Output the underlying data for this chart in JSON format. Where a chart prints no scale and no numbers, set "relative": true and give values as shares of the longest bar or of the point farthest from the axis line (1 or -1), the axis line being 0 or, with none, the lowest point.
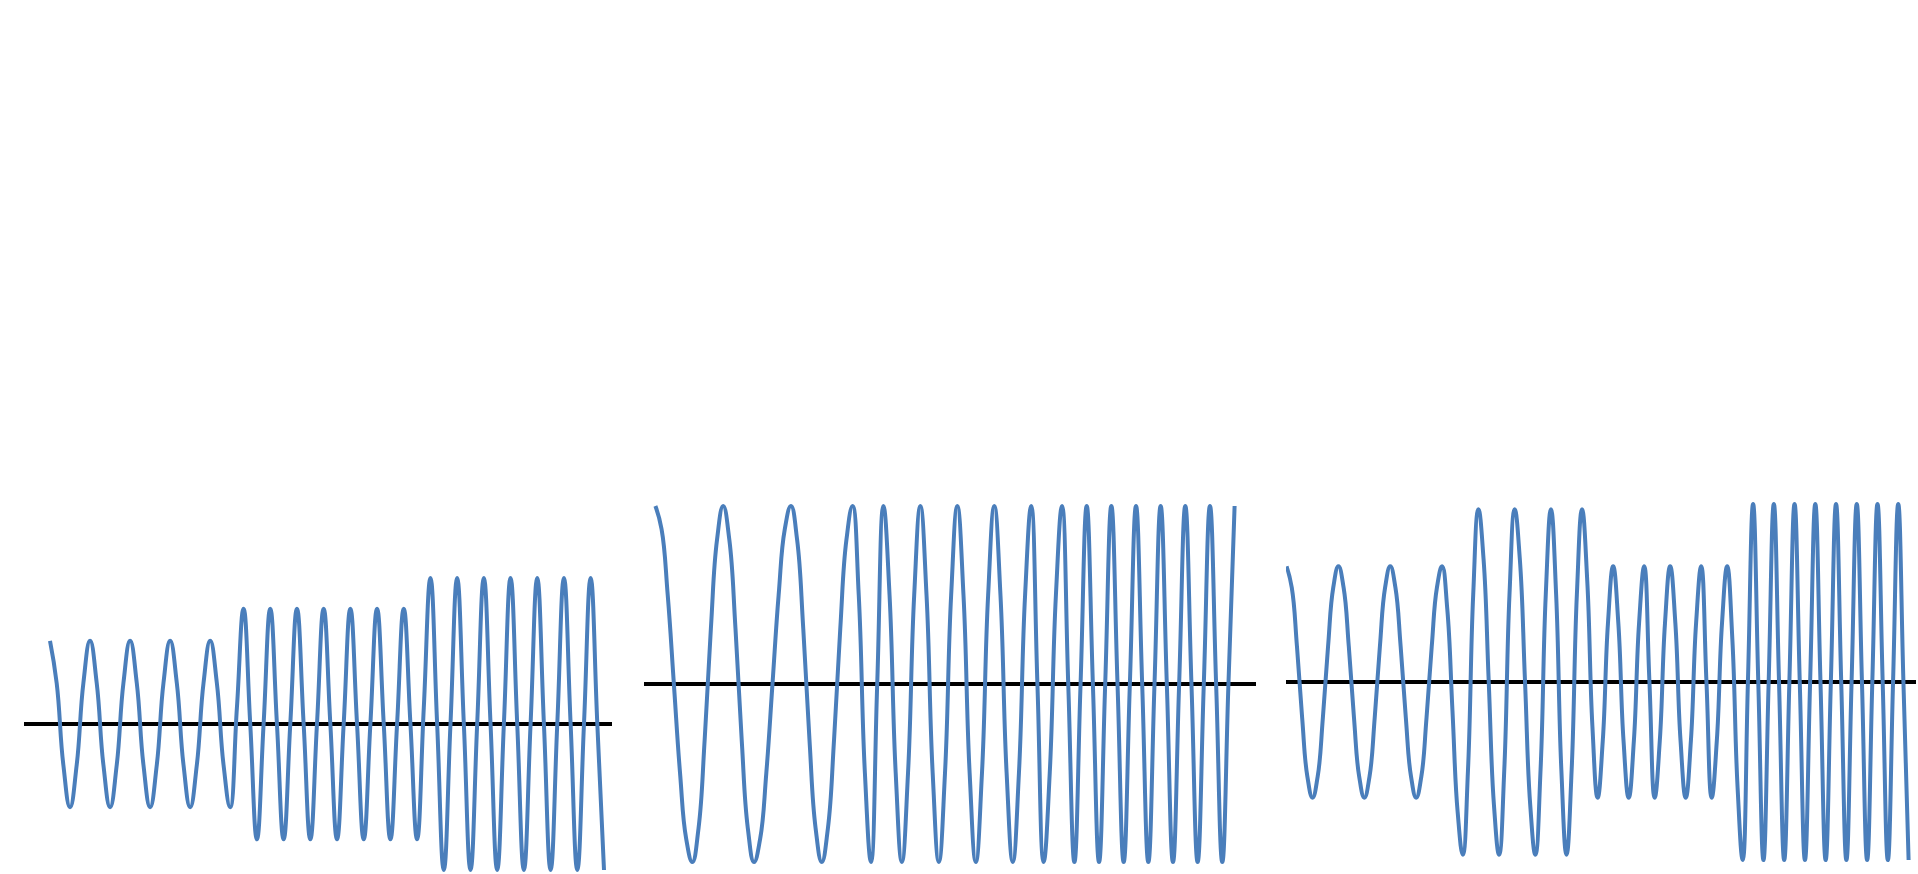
{
  "chart_data": [
    {
      "type": "line",
      "relative": true,
      "categories": [
        null,
        null,
        null,
        null,
        null,
        null,
        null,
        null,
        null,
        null,
        null,
        null,
        null,
        null,
        null,
        null,
        null,
        null,
        null,
        null,
        null,
        null,
        null,
        null,
        null,
        null,
        null,
        null,
        null,
        null,
        null,
        null,
        null,
        null,
        null,
        null,
        null,
        null,
        null,
        null,
        null,
        null,
        null,
        null,
        null,
        null,
        null,
        null,
        null,
        null,
        null,
        null,
        null,
        null,
        null,
        null,
        null,
        null,
        null,
        null,
        null,
        null,
        null,
        null,
        null,
        null,
        null,
        null,
        null,
        null,
        null,
        null,
        null,
        null,
        null,
        null,
        null,
        null,
        null,
        null,
        null,
        null,
        null,
        null
      ],
      "series": [
        {
          "color": "#4a7ebb",
          "values": [
            0.57,
            0.28,
            -0.28,
            -0.57,
            -0.28,
            0.28,
            0.57,
            0.28,
            -0.28,
            -0.57,
            -0.28,
            0.28,
            0.57,
            0.28,
            -0.28,
            -0.57,
            -0.28,
            0.28,
            0.57,
            0.28,
            -0.28,
            -0.57,
            -0.28,
            0.28,
            0.57,
            0.28,
            -0.28,
            -0.57,
            0.11,
            0.79,
            0,
            -0.79,
            0,
            0.79,
            0,
            -0.79,
            0,
            0.79,
            0,
            -0.79,
            0,
            0.79,
            0,
            -0.79,
            0,
            0.79,
            0,
            -0.79,
            0,
            0.79,
            0,
            -0.79,
            0,
            0.79,
            0,
            -0.79,
            0.11,
            1,
            0,
            -1,
            0,
            1,
            0,
            -1,
            0,
            1,
            0,
            -1,
            0,
            1,
            0,
            -1,
            0,
            1,
            0,
            -1,
            0,
            1,
            0,
            -1,
            0,
            1,
            0,
            -1
          ]
        }
      ]
    },
    {
      "type": "line",
      "relative": true,
      "categories": [
        null,
        null,
        null,
        null,
        null,
        null,
        null,
        null,
        null,
        null,
        null,
        null,
        null,
        null,
        null,
        null,
        null,
        null,
        null,
        null,
        null,
        null,
        null,
        null,
        null,
        null,
        null,
        null,
        null,
        null,
        null,
        null,
        null,
        null,
        null,
        null,
        null,
        null,
        null,
        null,
        null,
        null,
        null,
        null,
        null,
        null,
        null,
        null,
        null,
        null,
        null,
        null,
        null,
        null,
        null,
        null,
        null,
        null,
        null,
        null,
        null,
        null,
        null,
        null,
        null,
        null,
        null,
        null,
        null,
        null,
        null,
        null,
        null,
        null,
        null,
        null,
        null,
        null,
        null,
        null,
        null,
        null,
        null,
        null,
        null,
        null,
        null,
        null,
        null,
        null,
        null,
        null,
        null,
        null,
        null
      ],
      "series": [
        {
          "color": "#4a7ebb",
          "values": [
            1,
            0.87,
            0.5,
            0,
            -0.5,
            -0.87,
            -1,
            -0.81,
            -0.31,
            0.31,
            0.81,
            1,
            0.81,
            0.31,
            -0.31,
            -0.81,
            -1,
            -0.87,
            -0.5,
            0,
            0.5,
            0.87,
            1,
            0.81,
            0.31,
            -0.31,
            -0.81,
            -1,
            -0.81,
            -0.31,
            0.31,
            0.81,
            1,
            0.5,
            -0.5,
            -1,
            0,
            1,
            0.5,
            -0.5,
            -1,
            -0.5,
            0.5,
            1,
            0.5,
            -0.5,
            -1,
            -0.5,
            0.5,
            1,
            0.5,
            -0.5,
            -1,
            -0.5,
            0.5,
            1,
            0.5,
            -0.5,
            -1,
            -0.5,
            0.5,
            1,
            0,
            -1,
            -0.5,
            0.5,
            1,
            0,
            -1,
            0,
            1,
            0,
            -1,
            0,
            1,
            0,
            -1,
            0,
            1,
            0,
            -1,
            0,
            1,
            0,
            -1,
            0,
            1,
            0,
            -1,
            0,
            1,
            0,
            -1,
            0,
            1
          ]
        }
      ]
    },
    {
      "type": "line",
      "relative": true,
      "categories": [
        null,
        null,
        null,
        null,
        null,
        null,
        null,
        null,
        null,
        null,
        null,
        null,
        null,
        null,
        null,
        null,
        null,
        null,
        null,
        null,
        null,
        null,
        null,
        null,
        null,
        null,
        null,
        null,
        null,
        null,
        null,
        null,
        null,
        null,
        null,
        null,
        null,
        null,
        null,
        null,
        null,
        null,
        null,
        null,
        null,
        null,
        null,
        null,
        null,
        null,
        null,
        null,
        null,
        null,
        null,
        null,
        null,
        null,
        null,
        null,
        null,
        null,
        null,
        null,
        null,
        null,
        null,
        null,
        null,
        null,
        null,
        null,
        null,
        null,
        null,
        null,
        null,
        null,
        null,
        null,
        null,
        null,
        null,
        null,
        null,
        null,
        null,
        null,
        null,
        null,
        null,
        null,
        null,
        null,
        null,
        null,
        null,
        null,
        null,
        null,
        null,
        null,
        null,
        null,
        null,
        null,
        null,
        null,
        null,
        null,
        null,
        null,
        null,
        null,
        null,
        null,
        null,
        null,
        null,
        null,
        null
      ],
      "series": [
        {
          "color": "#4a7ebb",
          "values": [
            0.65,
            0.53,
            0.2,
            -0.2,
            -0.53,
            -0.65,
            -0.53,
            -0.2,
            0.2,
            0.53,
            0.65,
            0.53,
            0.2,
            -0.2,
            -0.53,
            -0.65,
            -0.53,
            -0.2,
            0.2,
            0.53,
            0.65,
            0.53,
            0.2,
            -0.2,
            -0.53,
            -0.65,
            -0.53,
            -0.2,
            0.2,
            0.53,
            0.65,
            0.41,
            -0.16,
            -0.73,
            -0.97,
            -0.49,
            0.49,
            0.97,
            0.69,
            0,
            -0.69,
            -0.97,
            -0.49,
            0.49,
            0.97,
            0.69,
            0,
            -0.69,
            -0.97,
            -0.49,
            0.49,
            0.97,
            0.49,
            -0.49,
            -0.97,
            -0.49,
            0.49,
            0.97,
            0.57,
            -0.25,
            -0.65,
            -0.33,
            0.33,
            0.65,
            0.33,
            -0.33,
            -0.65,
            -0.33,
            0.33,
            0.65,
            0,
            -0.65,
            -0.33,
            0.33,
            0.65,
            0.33,
            -0.33,
            -0.65,
            -0.33,
            0.33,
            0.65,
            0,
            -0.65,
            -0.33,
            0.33,
            0.65,
            0.24,
            -0.59,
            -1,
            0,
            1,
            0,
            -1,
            0,
            1,
            0,
            -1,
            0,
            1,
            0,
            -1,
            0,
            1,
            0,
            -1,
            0,
            1,
            0,
            -1,
            0,
            1,
            0,
            -1,
            0,
            1,
            0,
            -1,
            0,
            1,
            0,
            -1
          ]
        }
      ]
    }
  ]
}
